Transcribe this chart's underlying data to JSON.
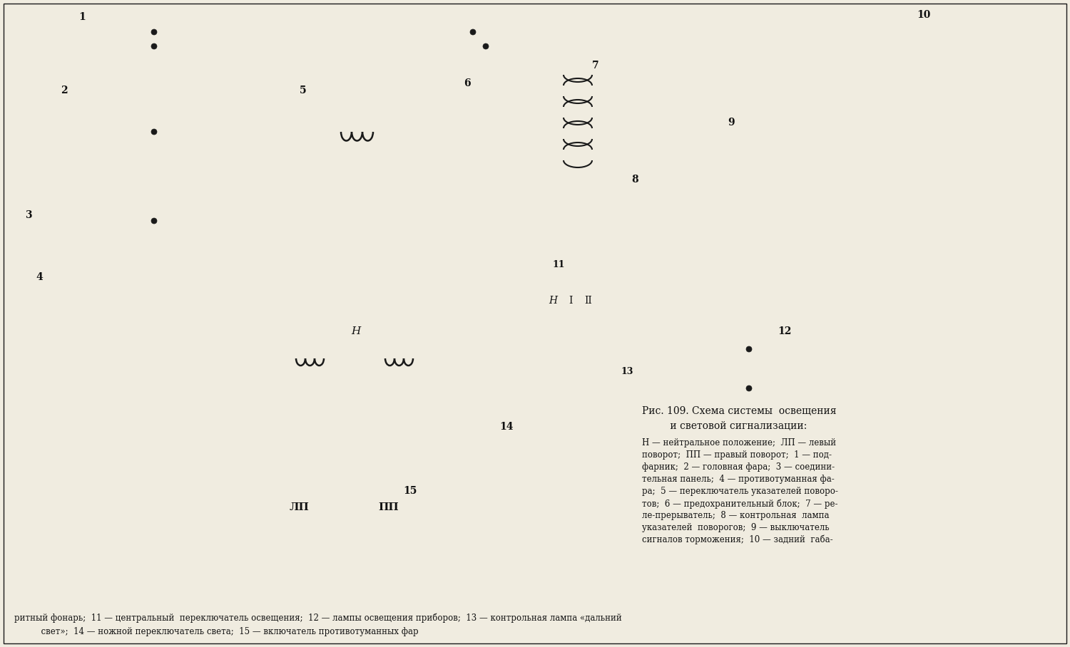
{
  "background_color": "#f0ece0",
  "fig_width": 15.0,
  "fig_height": 9.08,
  "title": "Рис. 109. Схема системы  освещения\n         и световой сигнализации:",
  "caption_right_lines": [
    "Н — нейтральное положение;  ЛП — левый",
    "поворот;  ПП — правый поворот;  1 — под-",
    "фарник;  2 — головная фара;  3 — соедини-",
    "тельная панель;  4 — противотуманная фа-",
    "ра;  5 — переключатель указателей поворо-",
    "тов;  6 — предохранительный блок;  7 — ре-",
    "ле-прерыватель;  8 — контрольная  лампа",
    "указателей  поворогов;  9 — выключатель",
    "сигналов торможения;  10 — задний  габа-"
  ],
  "caption_bottom_line1": "ритный фонарь;  11 — центральный  переключатель освещения;  12 — лампы освещения приборов;  13 — контрольная лампа «дальний",
  "caption_bottom_line2": "          свет»;  14 — ножной переключатель света;  15 — включатель противотуманных фар",
  "text_color": "#111111",
  "line_color": "#1a1a1a",
  "label_lp": "ЛП",
  "label_pp": "ПП",
  "label_n": "Н",
  "label_1": "I",
  "label_2": "II"
}
